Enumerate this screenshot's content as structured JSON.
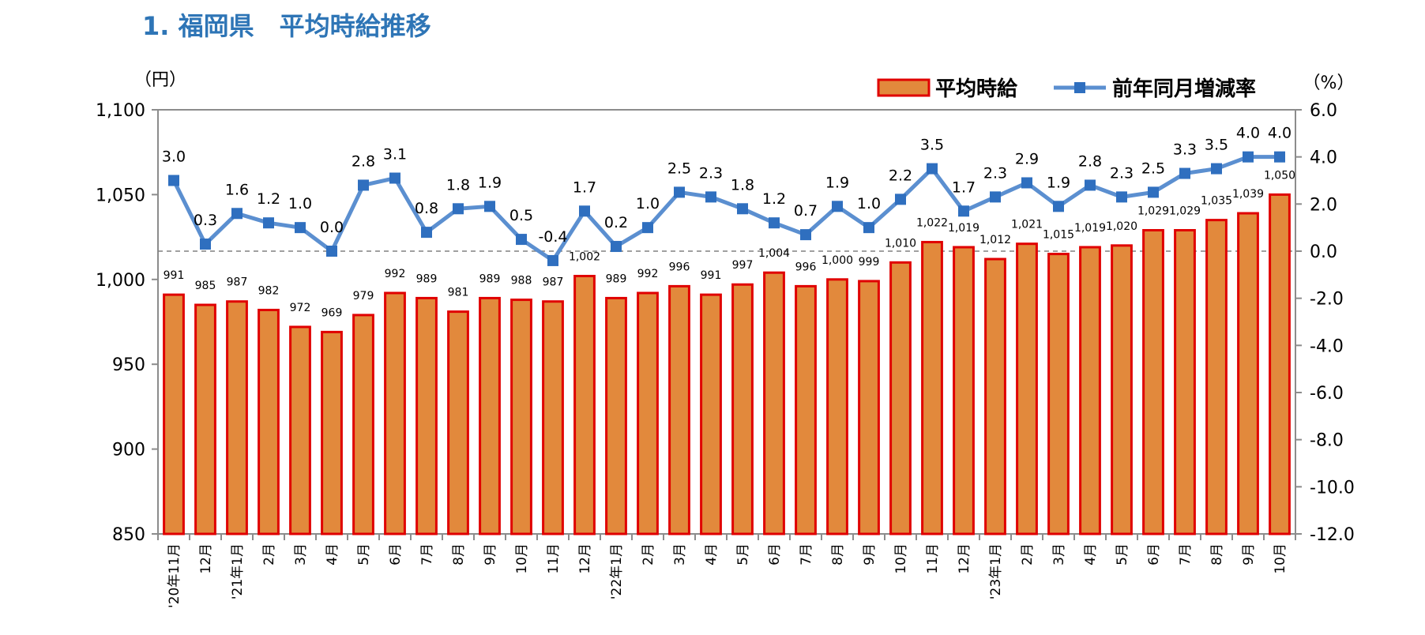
{
  "page": {
    "title": "1. 福岡県　平均時給推移"
  },
  "chart_data": {
    "type": "bar",
    "title": "",
    "left_unit": "（円）",
    "right_unit": "（%）",
    "categories": [
      "'20年11月",
      "12月",
      "'21年1月",
      "2月",
      "3月",
      "4月",
      "5月",
      "6月",
      "7月",
      "8月",
      "9月",
      "10月",
      "11月",
      "12月",
      "'22年1月",
      "2月",
      "3月",
      "4月",
      "5月",
      "6月",
      "7月",
      "8月",
      "9月",
      "10月",
      "11月",
      "12月",
      "'23年1月",
      "2月",
      "3月",
      "4月",
      "5月",
      "6月",
      "7月",
      "8月",
      "9月",
      "10月"
    ],
    "series": [
      {
        "name": "平均時給",
        "type": "bar",
        "axis": "left",
        "color": "#e2893c",
        "border_color": "#e00000",
        "values": [
          991,
          985,
          987,
          982,
          972,
          969,
          979,
          992,
          989,
          981,
          989,
          988,
          987,
          1002,
          989,
          992,
          996,
          991,
          997,
          1004,
          996,
          1000,
          999,
          1010,
          1022,
          1019,
          1012,
          1021,
          1015,
          1019,
          1020,
          1029,
          1029,
          1035,
          1039,
          1050
        ],
        "labels": [
          "991",
          "985",
          "987",
          "982",
          "972",
          "969",
          "979",
          "992",
          "989",
          "981",
          "989",
          "988",
          "987",
          "1,002",
          "989",
          "992",
          "996",
          "991",
          "997",
          "1,004",
          "996",
          "1,000",
          "999",
          "1,010",
          "1,022",
          "1,019",
          "1,012",
          "1,021",
          "1,015",
          "1,019",
          "1,020",
          "1,029",
          "1,029",
          "1,035",
          "1,039",
          "1,050"
        ]
      },
      {
        "name": "前年同月増減率",
        "type": "line",
        "axis": "right",
        "color": "#5b8fd0",
        "marker_color": "#2f6fbf",
        "values": [
          3.0,
          0.3,
          1.6,
          1.2,
          1.0,
          0.0,
          2.8,
          3.1,
          0.8,
          1.8,
          1.9,
          0.5,
          -0.4,
          1.7,
          0.2,
          1.0,
          2.5,
          2.3,
          1.8,
          1.2,
          0.7,
          1.9,
          1.0,
          2.2,
          3.5,
          1.7,
          2.3,
          2.9,
          1.9,
          2.8,
          2.3,
          2.5,
          3.3,
          3.5,
          4.0,
          4.0
        ],
        "labels": [
          "3.0",
          "0.3",
          "1.6",
          "1.2",
          "1.0",
          "0.0",
          "2.8",
          "3.1",
          "0.8",
          "1.8",
          "1.9",
          "0.5",
          "-0.4",
          "1.7",
          "0.2",
          "1.0",
          "2.5",
          "2.3",
          "1.8",
          "1.2",
          "0.7",
          "1.9",
          "1.0",
          "2.2",
          "3.5",
          "1.7",
          "2.3",
          "2.9",
          "1.9",
          "2.8",
          "2.3",
          "2.5",
          "3.3",
          "3.5",
          "4.0",
          "4.0"
        ]
      }
    ],
    "y_left": {
      "min": 850,
      "max": 1100,
      "ticks": [
        850,
        900,
        950,
        1000,
        1050,
        1100
      ],
      "tick_labels": [
        "850",
        "900",
        "950",
        "1,000",
        "1,050",
        "1,100"
      ]
    },
    "y_right": {
      "min": -12.0,
      "max": 6.0,
      "ticks": [
        -12,
        -10,
        -8,
        -6,
        -4,
        -2,
        0,
        2,
        4,
        6
      ],
      "tick_labels": [
        "-12.0",
        "-10.0",
        "-8.0",
        "-6.0",
        "-4.0",
        "-2.0",
        "0.0",
        "2.0",
        "4.0",
        "6.0"
      ]
    },
    "zero_line": {
      "axis": "right",
      "value": 0.0,
      "style": "dashed"
    },
    "grid": false,
    "legend": {
      "position": "top-right",
      "items": [
        "平均時給",
        "前年同月増減率"
      ]
    }
  }
}
